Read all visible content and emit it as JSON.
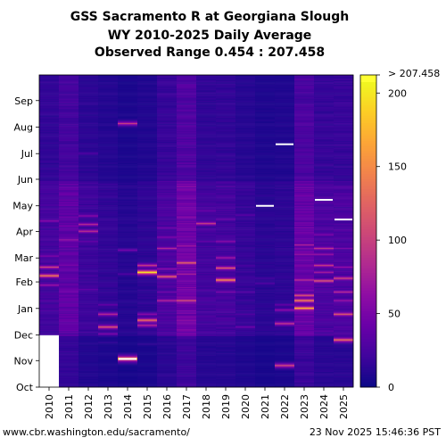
{
  "chart_data": {
    "type": "heatmap",
    "title": "GSS Sacramento R at Georgiana Slough",
    "subtitle": "WY 2010-2025 Daily Average",
    "range_label": "Observed Range 0.454 : 207.458",
    "x_tick_labels": [
      "2010",
      "2011",
      "2012",
      "2013",
      "2014",
      "2015",
      "2016",
      "2017",
      "2018",
      "2019",
      "2020",
      "2021",
      "2022",
      "2023",
      "2024",
      "2025"
    ],
    "y_tick_labels": [
      "Oct",
      "Nov",
      "Dec",
      "Jan",
      "Feb",
      "Mar",
      "Apr",
      "May",
      "Jun",
      "Jul",
      "Aug",
      "Sep"
    ],
    "colorbar": {
      "min": 0,
      "max": 207.458,
      "ticks": [
        0,
        50,
        100,
        150,
        200
      ],
      "over_label": "> 207.458",
      "colormap": "plasma",
      "colors": [
        "#0d0887",
        "#41049d",
        "#6a00a8",
        "#8f0da4",
        "#b12a90",
        "#cc4778",
        "#e16462",
        "#f2844b",
        "#fca636",
        "#fcce25",
        "#f0f921"
      ],
      "over_color": "#ffff33"
    },
    "missing_color": "#ffffff",
    "years": [
      {
        "year": "2010",
        "base": 14,
        "missing_until": "Nov 30",
        "events": [
          [
            "Jan 28",
            70
          ],
          [
            "Feb 8",
            145
          ],
          [
            "Feb 18",
            105
          ],
          [
            "Mar 3",
            55
          ],
          [
            "Apr 13",
            60
          ],
          [
            "Jan 10",
            35
          ]
        ]
      },
      {
        "year": "2011",
        "base": 22,
        "events": [
          [
            "Dec 18",
            45
          ],
          [
            "Jan 5",
            40
          ],
          [
            "Jan 20",
            32
          ],
          [
            "Feb 20",
            50
          ],
          [
            "Mar 22",
            70
          ],
          [
            "Apr 8",
            45
          ],
          [
            "May 5",
            38
          ],
          [
            "Jun 5",
            28
          ],
          [
            "Jul 1",
            22
          ]
        ]
      },
      {
        "year": "2012",
        "base": 12,
        "events": [
          [
            "Jan 23",
            38
          ],
          [
            "Feb 8",
            25
          ],
          [
            "Mar 20",
            40
          ],
          [
            "Apr 1",
            90
          ],
          [
            "Apr 9",
            85
          ],
          [
            "Apr 19",
            60
          ],
          [
            "Jul 1",
            30
          ]
        ]
      },
      {
        "year": "2013",
        "base": 9,
        "events": [
          [
            "Nov 22",
            15
          ],
          [
            "Dec 2",
            50
          ],
          [
            "Dec 10",
            120
          ],
          [
            "Dec 25",
            85
          ],
          [
            "Jan 5",
            40
          ]
        ]
      },
      {
        "year": "2014",
        "base": 6,
        "events": [
          [
            "Nov 3",
            207.458
          ],
          [
            "Feb 10",
            30
          ],
          [
            "Mar 10",
            45
          ],
          [
            "Aug 5",
            95
          ]
        ]
      },
      {
        "year": "2015",
        "base": 8,
        "events": [
          [
            "Nov 20",
            15
          ],
          [
            "Dec 12",
            85
          ],
          [
            "Dec 18",
            140
          ],
          [
            "Dec 25",
            60
          ],
          [
            "Feb 12",
            207.458
          ],
          [
            "Feb 20",
            100
          ]
        ]
      },
      {
        "year": "2016",
        "base": 16,
        "events": [
          [
            "Jan 10",
            85
          ],
          [
            "Jan 20",
            45
          ],
          [
            "Feb 7",
            130
          ],
          [
            "Feb 16",
            60
          ],
          [
            "Mar 12",
            80
          ],
          [
            "Mar 25",
            55
          ],
          [
            "Apr 5",
            45
          ]
        ]
      },
      {
        "year": "2017",
        "base": 28,
        "events": [
          [
            "Dec 18",
            65
          ],
          [
            "Jan 10",
            115
          ],
          [
            "Jan 25",
            60
          ],
          [
            "Feb 10",
            80
          ],
          [
            "Feb 23",
            130
          ],
          [
            "Mar 15",
            70
          ],
          [
            "Apr 10",
            55
          ],
          [
            "May 5",
            45
          ]
        ]
      },
      {
        "year": "2018",
        "base": 14,
        "events": [
          [
            "Jan 12",
            30
          ],
          [
            "Mar 20",
            40
          ],
          [
            "Apr 10",
            100
          ],
          [
            "Apr 25",
            45
          ]
        ]
      },
      {
        "year": "2019",
        "base": 14,
        "events": [
          [
            "Dec 20",
            30
          ],
          [
            "Jan 20",
            50
          ],
          [
            "Feb 3",
            155
          ],
          [
            "Feb 17",
            120
          ],
          [
            "Mar 1",
            75
          ],
          [
            "Mar 20",
            60
          ],
          [
            "Apr 15",
            45
          ]
        ]
      },
      {
        "year": "2020",
        "base": 10,
        "events": [
          [
            "Dec 10",
            45
          ],
          [
            "Dec 25",
            30
          ],
          [
            "Jan 20",
            32
          ],
          [
            "Feb 20",
            25
          ],
          [
            "Apr 20",
            35
          ]
        ]
      },
      {
        "year": "2021",
        "base": 7,
        "events": [
          [
            "Jan 30",
            30
          ],
          [
            "Feb 5",
            25
          ]
        ]
      },
      {
        "year": "2022",
        "base": 8,
        "events": [
          [
            "Oct 26",
            110
          ],
          [
            "Dec 14",
            95
          ],
          [
            "Dec 30",
            60
          ],
          [
            "Jan 5",
            40
          ]
        ]
      },
      {
        "year": "2023",
        "base": 25,
        "events": [
          [
            "Jan 1",
            175
          ],
          [
            "Jan 10",
            150
          ],
          [
            "Jan 16",
            120
          ],
          [
            "Feb 3",
            90
          ],
          [
            "Mar 5",
            70
          ],
          [
            "Mar 16",
            80
          ],
          [
            "Apr 5",
            50
          ]
        ]
      },
      {
        "year": "2024",
        "base": 16,
        "events": [
          [
            "Feb 2",
            120
          ],
          [
            "Feb 12",
            75
          ],
          [
            "Feb 20",
            100
          ],
          [
            "Mar 5",
            70
          ],
          [
            "Mar 12",
            90
          ],
          [
            "Mar 28",
            55
          ],
          [
            "May 5",
            40
          ]
        ]
      },
      {
        "year": "2025",
        "base": 16,
        "events": [
          [
            "Nov 25",
            140
          ],
          [
            "Dec 25",
            120
          ],
          [
            "Jan 10",
            70
          ],
          [
            "Jan 20",
            85
          ],
          [
            "Feb 5",
            110
          ],
          [
            "Feb 18",
            65
          ],
          [
            "Mar 12",
            50
          ]
        ]
      }
    ],
    "white_dashes": [
      [
        "2014",
        "Nov 3"
      ],
      [
        "2021",
        "May 1"
      ],
      [
        "2022",
        "Jul 12"
      ],
      [
        "2024",
        "May 8"
      ],
      [
        "2025",
        "Apr 15"
      ]
    ]
  },
  "footer": {
    "left": "www.cbr.washington.edu/sacramento/",
    "right": "23 Nov 2025 15:46:36 PST"
  }
}
